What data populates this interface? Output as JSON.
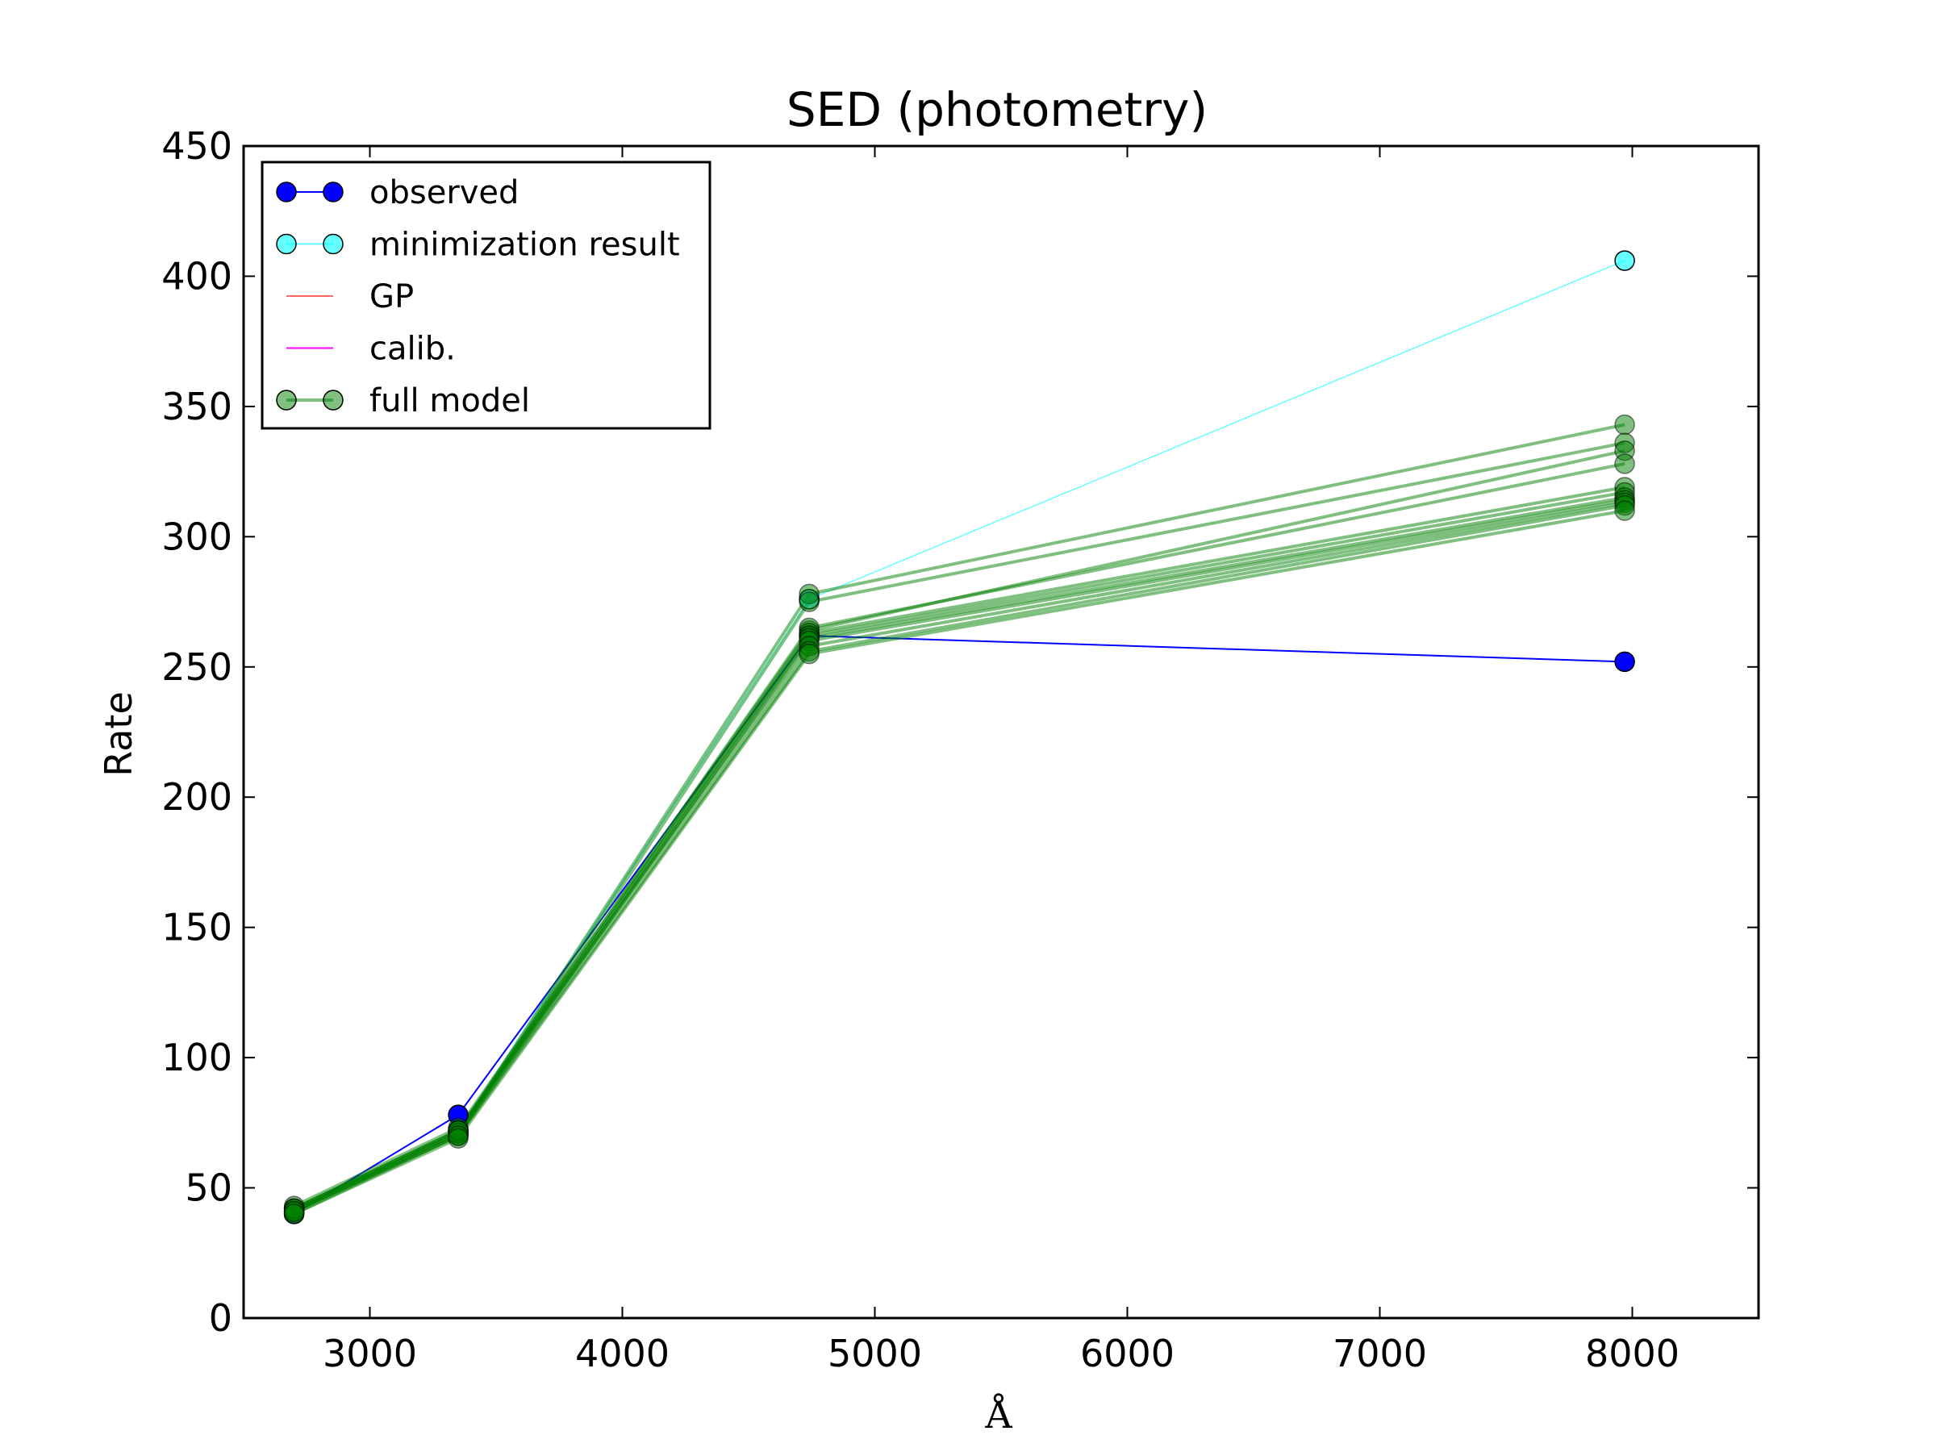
{
  "chart_data": {
    "type": "line",
    "title": "SED (photometry)",
    "xlabel": "Å",
    "ylabel": "Rate",
    "xlim": [
      2500,
      8500
    ],
    "ylim": [
      0,
      450
    ],
    "x_ticks": [
      3000,
      4000,
      5000,
      6000,
      7000,
      8000
    ],
    "y_ticks": [
      0,
      50,
      100,
      150,
      200,
      250,
      300,
      350,
      400,
      450
    ],
    "grid": false,
    "legend": {
      "position": "upper-left",
      "entries": [
        {
          "label": "observed",
          "color": "#0000ff",
          "style": "line-marker"
        },
        {
          "label": "minimization result",
          "color": "#00ffff",
          "style": "line-marker"
        },
        {
          "label": "GP",
          "color": "#ff0000",
          "style": "line"
        },
        {
          "label": "calib.",
          "color": "#ff00ff",
          "style": "line"
        },
        {
          "label": "full model",
          "color": "#008000",
          "style": "line-marker"
        }
      ]
    },
    "x": [
      2700,
      3350,
      4740,
      7970
    ],
    "series": [
      {
        "name": "observed",
        "color": "#0000ff",
        "values": [
          40,
          78,
          262,
          252
        ]
      },
      {
        "name": "minimization result",
        "color": "#00ffff",
        "values": [
          41,
          72,
          276,
          406
        ]
      },
      {
        "name": "full model",
        "color": "#008000",
        "samples": [
          [
            42,
            71,
            278,
            343
          ],
          [
            41,
            70,
            275,
            336
          ],
          [
            43,
            73,
            264,
            333
          ],
          [
            42,
            72,
            265,
            328
          ],
          [
            41,
            71,
            263,
            319
          ],
          [
            42,
            72,
            262,
            317
          ],
          [
            40,
            70,
            261,
            315
          ],
          [
            41,
            71,
            260,
            314
          ],
          [
            42,
            72,
            258,
            313
          ],
          [
            41,
            70,
            256,
            312
          ],
          [
            40,
            69,
            255,
            310
          ]
        ]
      }
    ]
  }
}
